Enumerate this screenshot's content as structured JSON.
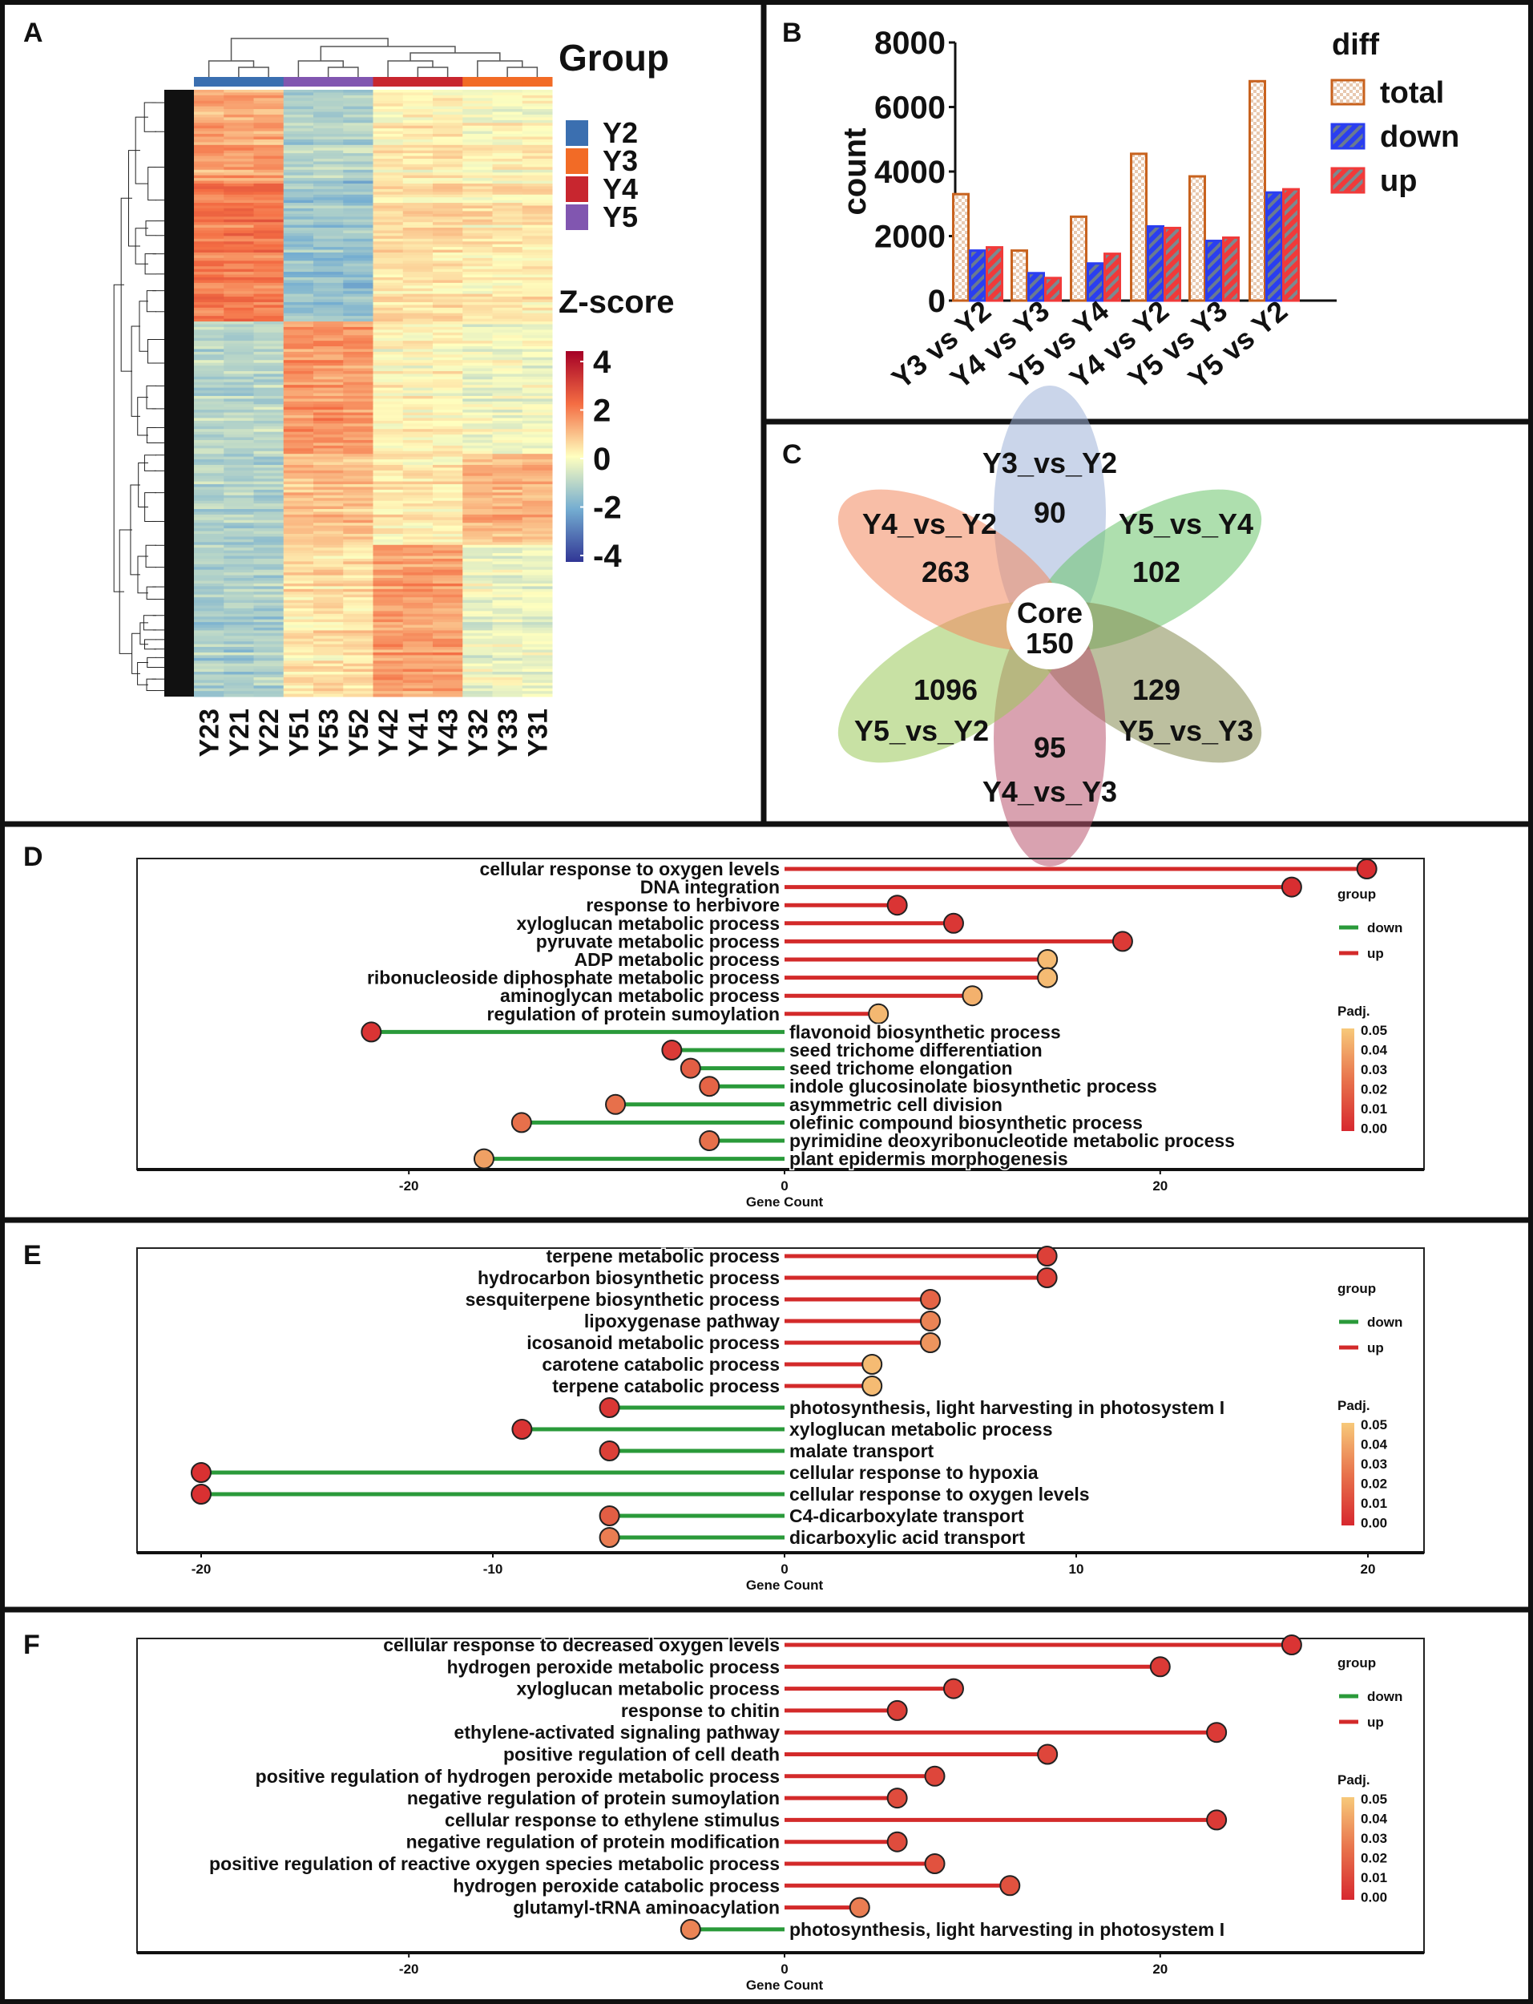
{
  "panels": {
    "A": "A",
    "B": "B",
    "C": "C",
    "D": "D",
    "E": "E",
    "F": "F"
  },
  "chart_data": [
    {
      "panel": "A",
      "type": "heatmap",
      "columns": [
        "Y23",
        "Y21",
        "Y22",
        "Y51",
        "Y53",
        "Y52",
        "Y42",
        "Y41",
        "Y43",
        "Y32",
        "Y33",
        "Y31"
      ],
      "column_groups": [
        "Y2",
        "Y2",
        "Y2",
        "Y5",
        "Y5",
        "Y5",
        "Y4",
        "Y4",
        "Y4",
        "Y3",
        "Y3",
        "Y3"
      ],
      "group_title": "Group",
      "groups": [
        {
          "name": "Y2",
          "color": "#3b6fb0"
        },
        {
          "name": "Y3",
          "color": "#f26b26"
        },
        {
          "name": "Y4",
          "color": "#c8262f"
        },
        {
          "name": "Y5",
          "color": "#8156b0"
        }
      ],
      "scale_title": "Z-score",
      "scale_ticks": [
        "4",
        "2",
        "0",
        "-2",
        "-4"
      ],
      "zlim": [
        -4,
        4
      ],
      "row_blocks_mean_z": [
        {
          "rows_fraction": 0.15,
          "Y2": 1.2,
          "Y5": -1.1,
          "Y4": 0.2,
          "Y3": 0.0
        },
        {
          "rows_fraction": 0.23,
          "Y2": 1.8,
          "Y5": -1.5,
          "Y4": 0.4,
          "Y3": 0.3
        },
        {
          "rows_fraction": 0.22,
          "Y2": -1.0,
          "Y5": 1.4,
          "Y4": 0.1,
          "Y3": -0.2
        },
        {
          "rows_fraction": 0.15,
          "Y2": -1.1,
          "Y5": 0.9,
          "Y4": 0.3,
          "Y3": 1.0
        },
        {
          "rows_fraction": 0.25,
          "Y2": -1.2,
          "Y5": 0.4,
          "Y4": 1.3,
          "Y3": -0.3
        }
      ]
    },
    {
      "panel": "B",
      "type": "bar",
      "ylabel": "count",
      "ylim": [
        0,
        8000
      ],
      "yticks": [
        "0",
        "2000",
        "4000",
        "6000",
        "8000"
      ],
      "categories": [
        "Y3 vs Y2",
        "Y4 vs Y3",
        "Y5 vs Y4",
        "Y4 vs Y2",
        "Y5 vs Y3",
        "Y5 vs Y2"
      ],
      "legend_title": "diff",
      "series": [
        {
          "name": "total",
          "color": "#c8621e",
          "values": [
            3300,
            1550,
            2600,
            4550,
            3850,
            6800
          ]
        },
        {
          "name": "down",
          "color": "#2a3ef0",
          "values": [
            1550,
            850,
            1150,
            2300,
            1850,
            3350
          ]
        },
        {
          "name": "up",
          "color": "#f03a3a",
          "values": [
            1650,
            700,
            1450,
            2250,
            1950,
            3450
          ]
        }
      ]
    },
    {
      "panel": "C",
      "type": "venn",
      "sets": [
        {
          "name": "Y3_vs_Y2",
          "unique": "90",
          "color": "#9fb2d8"
        },
        {
          "name": "Y5_vs_Y4",
          "unique": "102",
          "color": "#6cc46c"
        },
        {
          "name": "Y5_vs_Y3",
          "unique": "129",
          "color": "#858a50"
        },
        {
          "name": "Y4_vs_Y3",
          "unique": "95",
          "color": "#b9556f"
        },
        {
          "name": "Y5_vs_Y2",
          "unique": "1096",
          "color": "#9bc85a"
        },
        {
          "name": "Y4_vs_Y2",
          "unique": "263",
          "color": "#f2895f"
        }
      ],
      "core_label": "Core",
      "core_value": "150"
    },
    {
      "panel": "D",
      "type": "lollipop",
      "xlabel": "Gene Count",
      "xticks": [
        -20,
        0,
        20
      ],
      "xlim": [
        -33,
        35.5
      ],
      "legend_group_title": "group",
      "legend_groups": [
        {
          "name": "down",
          "color": "#2a9a3a"
        },
        {
          "name": "up",
          "color": "#d32a2a"
        }
      ],
      "padj_title": "Padj.",
      "padj_ticks": [
        "0.05",
        "0.04",
        "0.03",
        "0.02",
        "0.01",
        "0.00"
      ],
      "terms": [
        {
          "term": "cellular response to oxygen levels",
          "count": 31,
          "padj": 0.002
        },
        {
          "term": "DNA integration",
          "count": 27,
          "padj": 0.002
        },
        {
          "term": "response to herbivore",
          "count": 6,
          "padj": 0.004
        },
        {
          "term": "xyloglucan metabolic process",
          "count": 9,
          "padj": 0.005
        },
        {
          "term": "pyruvate metabolic process",
          "count": 18,
          "padj": 0.006
        },
        {
          "term": "ADP metabolic process",
          "count": 14,
          "padj": 0.046
        },
        {
          "term": "ribonucleoside diphosphate metabolic process",
          "count": 14,
          "padj": 0.046
        },
        {
          "term": "aminoglycan metabolic process",
          "count": 10,
          "padj": 0.043
        },
        {
          "term": "regulation of protein sumoylation",
          "count": 5,
          "padj": 0.045
        },
        {
          "term": "flavonoid biosynthetic process",
          "count": -22,
          "padj": 0.004
        },
        {
          "term": "seed trichome differentiation",
          "count": -6,
          "padj": 0.006
        },
        {
          "term": "seed trichome elongation",
          "count": -5,
          "padj": 0.018
        },
        {
          "term": "indole glucosinolate biosynthetic process",
          "count": -4,
          "padj": 0.02
        },
        {
          "term": "asymmetric cell division",
          "count": -9,
          "padj": 0.024
        },
        {
          "term": "olefinic compound biosynthetic process",
          "count": -14,
          "padj": 0.024
        },
        {
          "term": "pyrimidine deoxyribonucleotide metabolic process",
          "count": -4,
          "padj": 0.024
        },
        {
          "term": "plant epidermis morphogenesis",
          "count": -16,
          "padj": 0.038
        }
      ]
    },
    {
      "panel": "E",
      "type": "lollipop",
      "xlabel": "Gene Count",
      "xticks": [
        -20,
        -10,
        0,
        10,
        20
      ],
      "xlim": [
        -22,
        22
      ],
      "legend_group_title": "group",
      "legend_groups": [
        {
          "name": "down",
          "color": "#2a9a3a"
        },
        {
          "name": "up",
          "color": "#d32a2a"
        }
      ],
      "padj_title": "Padj.",
      "padj_ticks": [
        "0.05",
        "0.04",
        "0.03",
        "0.02",
        "0.01",
        "0.00"
      ],
      "terms": [
        {
          "term": "terpene metabolic process",
          "count": 9,
          "padj": 0.008
        },
        {
          "term": "hydrocarbon biosynthetic process",
          "count": 9,
          "padj": 0.008
        },
        {
          "term": "sesquiterpene biosynthetic process",
          "count": 5,
          "padj": 0.02
        },
        {
          "term": "lipoxygenase pathway",
          "count": 5,
          "padj": 0.03
        },
        {
          "term": "icosanoid metabolic process",
          "count": 5,
          "padj": 0.035
        },
        {
          "term": "carotene catabolic process",
          "count": 3,
          "padj": 0.046
        },
        {
          "term": "terpene catabolic process",
          "count": 3,
          "padj": 0.046
        },
        {
          "term": "photosynthesis, light harvesting in photosystem I",
          "count": -6,
          "padj": 0.005
        },
        {
          "term": "xyloglucan metabolic process",
          "count": -9,
          "padj": 0.004
        },
        {
          "term": "malate transport",
          "count": -6,
          "padj": 0.008
        },
        {
          "term": "cellular response to hypoxia",
          "count": -20,
          "padj": 0.003
        },
        {
          "term": "cellular response to oxygen levels",
          "count": -20,
          "padj": 0.003
        },
        {
          "term": "C4-dicarboxylate transport",
          "count": -6,
          "padj": 0.018
        },
        {
          "term": "dicarboxylic acid transport",
          "count": -6,
          "padj": 0.028
        }
      ]
    },
    {
      "panel": "F",
      "type": "lollipop",
      "xlabel": "Gene Count",
      "xticks": [
        -20,
        0,
        20
      ],
      "xlim": [
        -33,
        35.5
      ],
      "legend_group_title": "group",
      "legend_groups": [
        {
          "name": "down",
          "color": "#2a9a3a"
        },
        {
          "name": "up",
          "color": "#d32a2a"
        }
      ],
      "padj_title": "Padj.",
      "padj_ticks": [
        "0.05",
        "0.04",
        "0.03",
        "0.02",
        "0.01",
        "0.00"
      ],
      "terms": [
        {
          "term": "cellular response to decreased oxygen levels",
          "count": 27,
          "padj": 0.004
        },
        {
          "term": "hydrogen peroxide metabolic process",
          "count": 20,
          "padj": 0.006
        },
        {
          "term": "xyloglucan metabolic process",
          "count": 9,
          "padj": 0.008
        },
        {
          "term": "response to chitin",
          "count": 6,
          "padj": 0.008
        },
        {
          "term": "ethylene-activated signaling pathway",
          "count": 23,
          "padj": 0.006
        },
        {
          "term": "positive regulation of cell death",
          "count": 14,
          "padj": 0.01
        },
        {
          "term": "positive regulation of hydrogen peroxide metabolic process",
          "count": 8,
          "padj": 0.01
        },
        {
          "term": "negative regulation of protein sumoylation",
          "count": 6,
          "padj": 0.012
        },
        {
          "term": "cellular response to ethylene stimulus",
          "count": 23,
          "padj": 0.006
        },
        {
          "term": "negative regulation of protein modification",
          "count": 6,
          "padj": 0.012
        },
        {
          "term": "positive regulation of reactive oxygen species metabolic process",
          "count": 8,
          "padj": 0.014
        },
        {
          "term": "hydrogen peroxide catabolic process",
          "count": 12,
          "padj": 0.014
        },
        {
          "term": "glutamyl-tRNA aminoacylation",
          "count": 4,
          "padj": 0.028
        },
        {
          "term": "photosynthesis, light harvesting in photosystem I",
          "count": -5,
          "padj": 0.03
        }
      ]
    }
  ]
}
